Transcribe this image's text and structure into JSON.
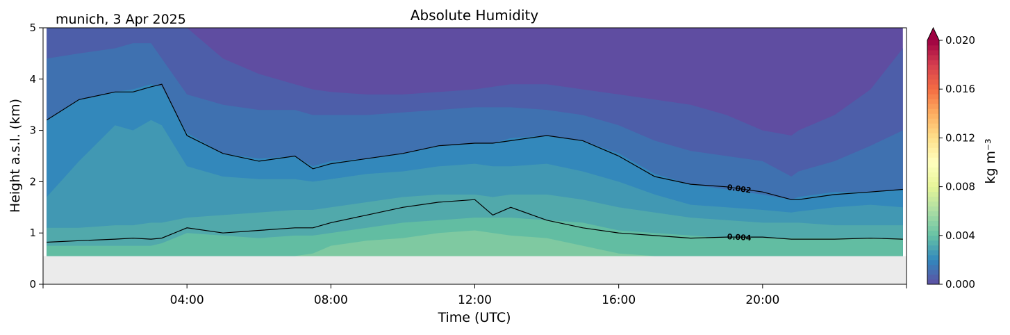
{
  "location_date": "munich, 3 Apr 2025",
  "chart_data": {
    "type": "contourf",
    "title": "Absolute Humidity",
    "xlabel": "Time (UTC)",
    "ylabel": "Height a.s.l. (km)",
    "xlim_hours": [
      0,
      24
    ],
    "ylim_km": [
      0,
      5
    ],
    "x_ticks": [
      {
        "hour": 4,
        "label": "04:00"
      },
      {
        "hour": 8,
        "label": "08:00"
      },
      {
        "hour": 12,
        "label": "12:00"
      },
      {
        "hour": 16,
        "label": "16:00"
      },
      {
        "hour": 20,
        "label": "20:00"
      }
    ],
    "y_ticks": [
      {
        "value": 0,
        "label": "0"
      },
      {
        "value": 1,
        "label": "1"
      },
      {
        "value": 2,
        "label": "2"
      },
      {
        "value": 3,
        "label": "3"
      },
      {
        "value": 4,
        "label": "4"
      },
      {
        "value": 5,
        "label": "5"
      }
    ],
    "data_start_hour": 0.1,
    "data_end_hour": 23.9,
    "lowest_data_height_km": 0.55,
    "missing_color": "#ebebeb",
    "colormap": "Spectral_r",
    "colorbar": {
      "label": "kg m⁻³",
      "min": 0.0,
      "max": 0.02,
      "extend": "max",
      "ticks": [
        {
          "value": 0.0,
          "label": "0.000"
        },
        {
          "value": 0.004,
          "label": "0.004"
        },
        {
          "value": 0.008,
          "label": "0.008"
        },
        {
          "value": 0.012,
          "label": "0.012"
        },
        {
          "value": 0.016,
          "label": "0.016"
        },
        {
          "value": 0.02,
          "label": "0.020"
        }
      ]
    },
    "time_hours": [
      0.1,
      1,
      2,
      2.5,
      3,
      3.3,
      4,
      5,
      6,
      7,
      7.5,
      8,
      9,
      10,
      11,
      12,
      12.5,
      13,
      14,
      15,
      16,
      17,
      18,
      19,
      20,
      20.8,
      21,
      22,
      23,
      23.9
    ],
    "filled_bands": [
      {
        "level": 0.0002,
        "color": "#5f4da1",
        "heights_km": [
          5.0,
          5.0,
          5.0,
          5.0,
          5.0,
          5.0,
          5.0,
          5.0,
          5.0,
          5.0,
          5.0,
          5.0,
          5.0,
          5.0,
          5.0,
          5.0,
          5.0,
          5.0,
          5.0,
          5.0,
          5.0,
          5.0,
          5.0,
          5.0,
          5.0,
          5.0,
          5.0,
          5.0,
          5.0,
          5.0
        ]
      },
      {
        "level": 0.0006,
        "color": "#4d5ea9",
        "heights_km": [
          5.0,
          5.0,
          5.0,
          5.0,
          5.0,
          5.0,
          5.0,
          4.4,
          4.1,
          3.9,
          3.8,
          3.75,
          3.7,
          3.7,
          3.75,
          3.8,
          3.85,
          3.9,
          3.9,
          3.8,
          3.7,
          3.6,
          3.5,
          3.3,
          3.0,
          2.9,
          3.0,
          3.3,
          3.8,
          4.6
        ]
      },
      {
        "level": 0.001,
        "color": "#3f71b0",
        "heights_km": [
          4.4,
          4.5,
          4.6,
          4.7,
          4.7,
          4.4,
          3.7,
          3.5,
          3.4,
          3.4,
          3.3,
          3.3,
          3.3,
          3.35,
          3.4,
          3.45,
          3.45,
          3.45,
          3.4,
          3.3,
          3.1,
          2.8,
          2.6,
          2.5,
          2.4,
          2.1,
          2.2,
          2.4,
          2.7,
          3.0
        ]
      },
      {
        "level": 0.0016,
        "color": "#3388bb",
        "heights_km": [
          3.2,
          3.6,
          3.75,
          3.8,
          3.9,
          3.85,
          2.95,
          2.55,
          2.45,
          2.5,
          2.3,
          2.4,
          2.45,
          2.55,
          2.7,
          2.75,
          2.75,
          2.85,
          2.9,
          2.8,
          2.55,
          2.15,
          1.95,
          1.85,
          1.75,
          1.65,
          1.7,
          1.8,
          1.8,
          1.85
        ]
      },
      {
        "level": 0.0024,
        "color": "#4198b3",
        "heights_km": [
          1.7,
          2.4,
          3.1,
          3.0,
          3.2,
          3.1,
          2.3,
          2.1,
          2.05,
          2.05,
          2.0,
          2.05,
          2.15,
          2.2,
          2.3,
          2.35,
          2.3,
          2.3,
          2.35,
          2.2,
          2.0,
          1.75,
          1.55,
          1.5,
          1.45,
          1.4,
          1.42,
          1.5,
          1.55,
          1.5
        ]
      },
      {
        "level": 0.003,
        "color": "#51a9ab",
        "heights_km": [
          1.1,
          1.1,
          1.15,
          1.15,
          1.2,
          1.2,
          1.3,
          1.35,
          1.4,
          1.45,
          1.45,
          1.5,
          1.6,
          1.7,
          1.75,
          1.75,
          1.7,
          1.75,
          1.75,
          1.65,
          1.5,
          1.4,
          1.3,
          1.25,
          1.2,
          1.2,
          1.2,
          1.15,
          1.15,
          1.15
        ]
      },
      {
        "level": 0.0036,
        "color": "#62bda2",
        "heights_km": [
          0.75,
          0.75,
          0.75,
          0.75,
          0.75,
          0.8,
          1.0,
          0.95,
          0.9,
          0.95,
          0.95,
          1.0,
          1.1,
          1.2,
          1.25,
          1.3,
          1.3,
          1.3,
          1.25,
          1.2,
          1.05,
          1.0,
          0.95,
          0.9,
          0.9,
          0.9,
          0.9,
          0.9,
          0.9,
          0.9
        ]
      },
      {
        "level": 0.0042,
        "color": "#7fc9a1",
        "heights_km": [
          0.55,
          0.55,
          0.55,
          0.55,
          0.55,
          0.55,
          0.55,
          0.55,
          0.55,
          0.55,
          0.6,
          0.75,
          0.85,
          0.9,
          1.0,
          1.05,
          1.0,
          0.95,
          0.9,
          0.75,
          0.6,
          0.55,
          0.55,
          0.55,
          0.55,
          0.55,
          0.55,
          0.55,
          0.55,
          0.55
        ]
      }
    ],
    "contour_lines": [
      {
        "level": 0.002,
        "label": "0.002",
        "label_at_hour": 19.35,
        "heights_km": [
          3.2,
          3.6,
          3.75,
          3.75,
          3.85,
          3.9,
          2.9,
          2.55,
          2.4,
          2.5,
          2.25,
          2.35,
          2.45,
          2.55,
          2.7,
          2.75,
          2.75,
          2.8,
          2.9,
          2.8,
          2.5,
          2.1,
          1.95,
          1.9,
          1.8,
          1.65,
          1.65,
          1.75,
          1.8,
          1.85
        ]
      },
      {
        "level": 0.004,
        "label": "0.004",
        "label_at_hour": 19.35,
        "heights_km": [
          0.82,
          0.85,
          0.88,
          0.9,
          0.88,
          0.9,
          1.1,
          1.0,
          1.05,
          1.1,
          1.1,
          1.2,
          1.35,
          1.5,
          1.6,
          1.65,
          1.35,
          1.5,
          1.25,
          1.1,
          1.0,
          0.95,
          0.9,
          0.92,
          0.92,
          0.88,
          0.88,
          0.88,
          0.9,
          0.88
        ]
      }
    ]
  }
}
